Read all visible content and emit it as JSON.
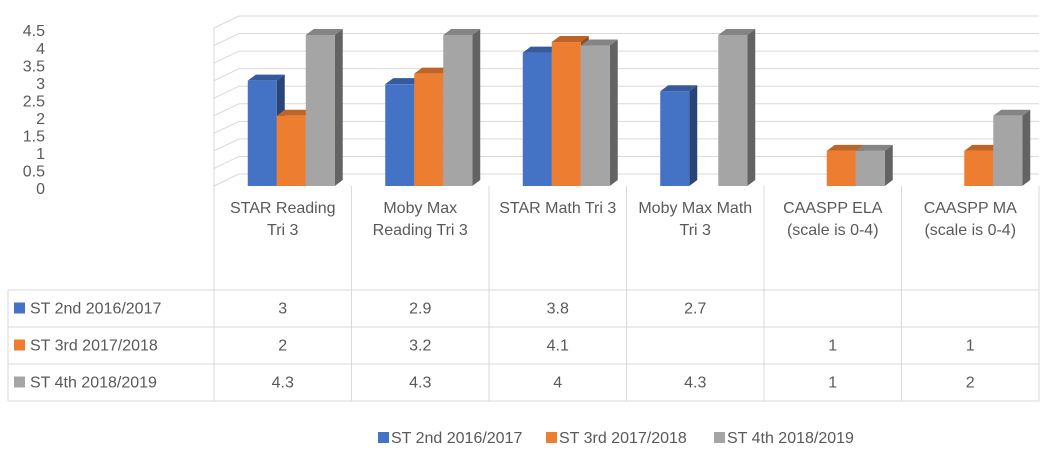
{
  "chart_data": {
    "type": "bar",
    "categories": [
      "STAR Reading Tri 3",
      "Moby Max Reading Tri 3",
      "STAR Math Tri 3",
      "Moby Max Math Tri 3",
      "CAASPP ELA (scale is 0-4)",
      "CAASPP MA (scale is 0-4)"
    ],
    "series": [
      {
        "name": "ST 2nd 2016/2017",
        "color": "#4472c4",
        "values": [
          3,
          2.9,
          3.8,
          2.7,
          null,
          null
        ]
      },
      {
        "name": "ST 3rd 2017/2018",
        "color": "#ed7d31",
        "values": [
          2,
          3.2,
          4.1,
          null,
          1,
          1
        ]
      },
      {
        "name": "ST 4th 2018/2019",
        "color": "#a5a5a5",
        "values": [
          4.3,
          4.3,
          4,
          4.3,
          1,
          2
        ]
      }
    ],
    "ylim": [
      0,
      4.5
    ],
    "yticks": [
      0,
      0.5,
      1,
      1.5,
      2,
      2.5,
      3,
      3.5,
      4,
      4.5
    ],
    "grid": true,
    "legend": "bottom",
    "data_table": true
  }
}
